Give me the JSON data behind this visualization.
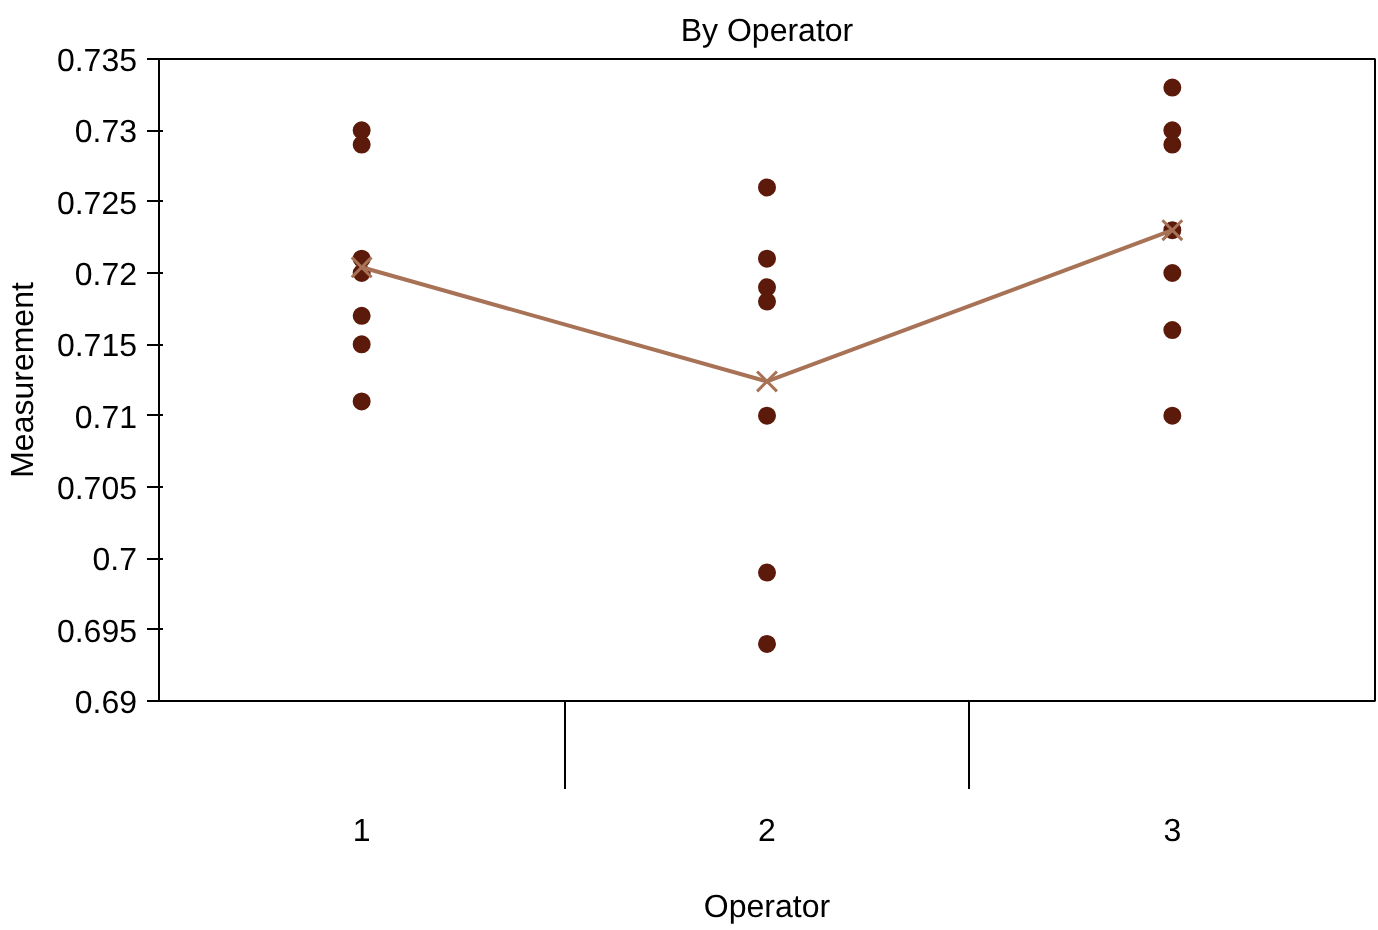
{
  "chart_data": {
    "type": "scatter",
    "title": "By Operator",
    "xlabel": "Operator",
    "ylabel": "Measurement",
    "categories": [
      "1",
      "2",
      "3"
    ],
    "series": [
      {
        "color": "#5c1a0b",
        "marker": "circle",
        "x": [
          "1",
          "1",
          "1",
          "1",
          "1",
          "1",
          "1",
          "2",
          "2",
          "2",
          "2",
          "2",
          "2",
          "2",
          "3",
          "3",
          "3",
          "3",
          "3",
          "3",
          "3"
        ],
        "values": [
          0.73,
          0.729,
          0.721,
          0.72,
          0.717,
          0.715,
          0.711,
          0.726,
          0.721,
          0.719,
          0.718,
          0.71,
          0.699,
          0.694,
          0.733,
          0.73,
          0.729,
          0.723,
          0.72,
          0.716,
          0.71
        ]
      },
      {
        "type": "line",
        "color": "#a87256",
        "marker": "cross",
        "x": [
          "1",
          "2",
          "3"
        ],
        "values": [
          0.7204,
          0.7124,
          0.723
        ]
      }
    ],
    "ylim": [
      0.69,
      0.735
    ],
    "yticks": [
      0.69,
      0.695,
      0.7,
      0.705,
      0.71,
      0.715,
      0.72,
      0.725,
      0.73,
      0.735
    ],
    "grid": false
  }
}
